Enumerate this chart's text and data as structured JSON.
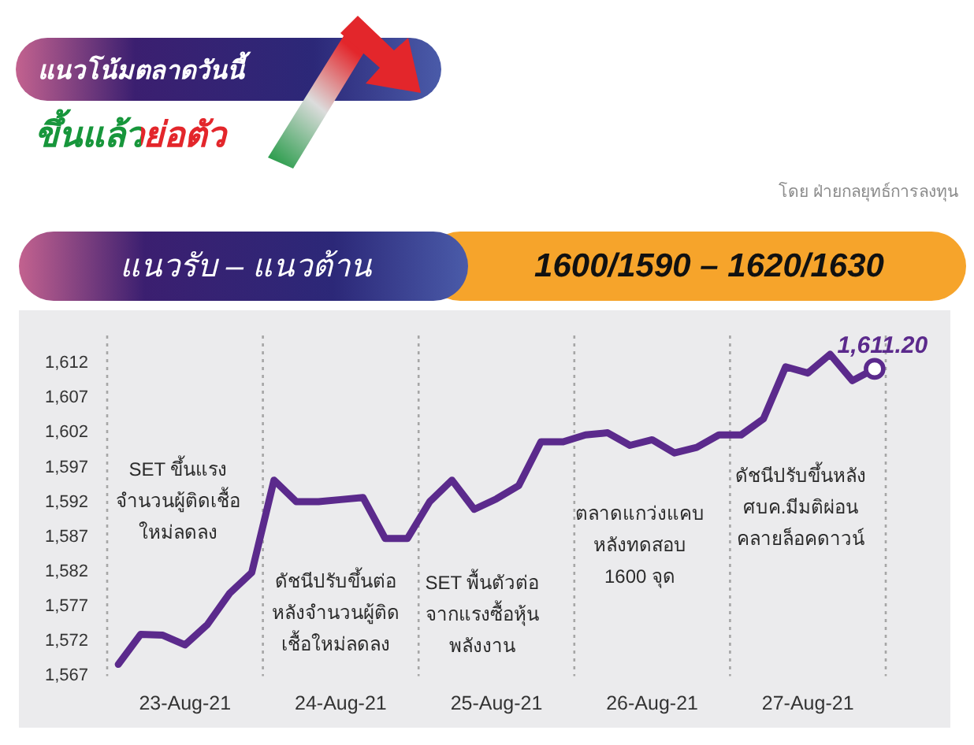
{
  "chart_data": {
    "type": "line",
    "title": "แนวโน้มตลาดวันนี้",
    "subtitle": "ขึ้นแล้วย่อตัว",
    "annotations": [
      "โดย ฝ่ายกลยุทธ์การลงทุน",
      "แนวรับ – แนวต้าน",
      "1600/1590 – 1620/1630",
      "SET ขึ้นแรง\nจำนวนผู้ติดเชื้อ\nใหม่ลดลง",
      "ดัชนีปรับขึ้นต่อ\nหลังจำนวนผู้ติด\nเชื้อใหม่ลดลง",
      "SET พื้นตัวต่อ\nจากแรงซื้อหุ้น\nพลังงาน",
      "ตลาดแกว่งแคบ\nหลังทดสอบ\n1600 จุด",
      "ดัชนีปรับขึ้นหลัง\nศบค.มีมติผ่อน\nคลายล็อคดาวน์"
    ],
    "categories": [
      null,
      null,
      null,
      "23-Aug-21",
      null,
      null,
      null,
      null,
      null,
      null,
      "24-Aug-21",
      null,
      null,
      null,
      null,
      null,
      null,
      "25-Aug-21",
      null,
      null,
      null,
      null,
      null,
      null,
      "26-Aug-21",
      null,
      null,
      null,
      null,
      null,
      null,
      "27-Aug-21",
      null,
      null,
      null
    ],
    "ylim": [
      1567,
      1616
    ],
    "yticks": [
      {
        "value": 1567,
        "label": "1,567"
      },
      {
        "value": 1572,
        "label": "1,572"
      },
      {
        "value": 1577,
        "label": "1,577"
      },
      {
        "value": 1582,
        "label": "1,582"
      },
      {
        "value": 1587,
        "label": "1,587"
      },
      {
        "value": 1592,
        "label": "1,592"
      },
      {
        "value": 1597,
        "label": "1,597"
      },
      {
        "value": 1602,
        "label": "1,602"
      },
      {
        "value": 1607,
        "label": "1,607"
      },
      {
        "value": 1612,
        "label": "1,612"
      }
    ],
    "grid": "x",
    "series": [
      {
        "color": "#5b2a8c",
        "marker": "none",
        "line_style": "solid",
        "values": [
          1568.7,
          1573.0,
          1572.9,
          1571.5,
          1574.4,
          1578.9,
          1581.9,
          1595.2,
          1592.1,
          1592.1,
          1592.4,
          1592.7,
          1586.8,
          1586.8,
          1592.1,
          1595.2,
          1591.0,
          1592.5,
          1594.4,
          1600.7,
          1600.7,
          1601.7,
          1602.0,
          1600.2,
          1601.0,
          1599.1,
          1599.9,
          1601.7,
          1601.7,
          1604.0,
          1611.5,
          1610.6,
          1613.3,
          1609.5,
          1611.2
        ]
      },
      {
        "type": "scatter",
        "color": "#5b2a8c",
        "marker": "circle",
        "values": [
          null,
          null,
          null,
          null,
          null,
          null,
          null,
          null,
          null,
          null,
          null,
          null,
          null,
          null,
          null,
          null,
          null,
          null,
          null,
          null,
          null,
          null,
          null,
          null,
          null,
          null,
          null,
          null,
          null,
          null,
          null,
          null,
          null,
          null,
          1611.2
        ],
        "value_labels": [
          null,
          null,
          null,
          null,
          null,
          null,
          null,
          null,
          null,
          null,
          null,
          null,
          null,
          null,
          null,
          null,
          null,
          null,
          null,
          null,
          null,
          null,
          null,
          null,
          null,
          null,
          null,
          null,
          null,
          null,
          null,
          null,
          null,
          null,
          "1,611.20"
        ]
      }
    ]
  }
}
